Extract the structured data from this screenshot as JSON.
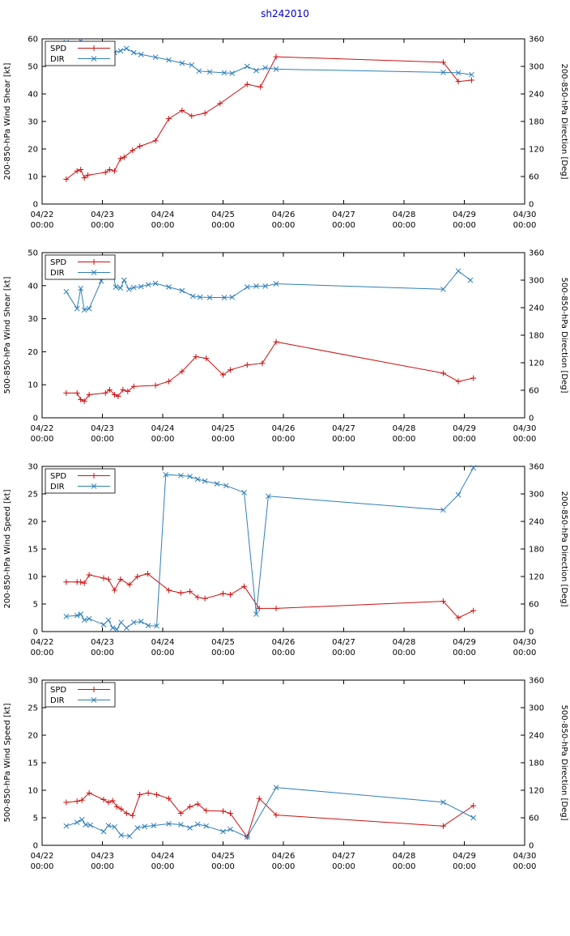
{
  "title": "sh242010",
  "colors": {
    "title": "#0000cc",
    "spd": "#cc1111",
    "dir": "#2e7eb8",
    "axis": "#000000"
  },
  "x_axis": {
    "lim": [
      0,
      8
    ],
    "ticks": [
      0,
      1,
      2,
      3,
      4,
      5,
      6,
      7,
      8
    ],
    "labels": [
      [
        "04/22",
        "00:00"
      ],
      [
        "04/23",
        "00:00"
      ],
      [
        "04/24",
        "00:00"
      ],
      [
        "04/25",
        "00:00"
      ],
      [
        "04/26",
        "00:00"
      ],
      [
        "04/27",
        "00:00"
      ],
      [
        "04/28",
        "00:00"
      ],
      [
        "04/29",
        "00:00"
      ],
      [
        "04/30",
        "00:00"
      ]
    ]
  },
  "chart_data": [
    {
      "type": "line",
      "ylabel_left": "200-850-hPa Wind Shear [kt]",
      "ylabel_right": "200-850-hPa Direction [Deg]",
      "ylim_left": [
        0,
        60
      ],
      "ytick_left": 10,
      "ylim_right": [
        0,
        360
      ],
      "ytick_right": 60,
      "series": [
        {
          "name": "SPD",
          "axis": "left",
          "marker": "plus",
          "color": "spd",
          "points": [
            [
              0.4,
              9
            ],
            [
              0.58,
              12
            ],
            [
              0.64,
              12.5
            ],
            [
              0.7,
              9.5
            ],
            [
              0.76,
              10.5
            ],
            [
              1.05,
              11.5
            ],
            [
              1.12,
              12.5
            ],
            [
              1.2,
              12
            ],
            [
              1.3,
              16.5
            ],
            [
              1.36,
              17
            ],
            [
              1.5,
              19.5
            ],
            [
              1.62,
              21
            ],
            [
              1.88,
              23
            ],
            [
              2.1,
              31
            ],
            [
              2.32,
              34
            ],
            [
              2.48,
              32
            ],
            [
              2.7,
              33
            ],
            [
              2.95,
              36.5
            ],
            [
              3.4,
              43.5
            ],
            [
              3.62,
              42.5
            ],
            [
              3.88,
              53.5
            ],
            [
              6.65,
              51.5
            ],
            [
              6.9,
              44.5
            ],
            [
              7.12,
              45
            ]
          ]
        },
        {
          "name": "DIR",
          "axis": "right",
          "marker": "cross",
          "color": "dir",
          "points": [
            [
              0.4,
              352
            ],
            [
              0.5,
              330
            ],
            [
              0.58,
              331
            ],
            [
              0.64,
              355
            ],
            [
              0.7,
              330
            ],
            [
              0.76,
              333
            ],
            [
              0.9,
              338
            ],
            [
              1.05,
              332
            ],
            [
              1.2,
              330
            ],
            [
              1.3,
              334
            ],
            [
              1.4,
              339
            ],
            [
              1.52,
              330
            ],
            [
              1.64,
              326
            ],
            [
              1.88,
              320
            ],
            [
              2.1,
              314
            ],
            [
              2.32,
              307
            ],
            [
              2.48,
              303
            ],
            [
              2.6,
              290
            ],
            [
              2.78,
              288
            ],
            [
              3.02,
              286
            ],
            [
              3.15,
              285
            ],
            [
              3.4,
              300
            ],
            [
              3.55,
              291
            ],
            [
              3.7,
              297
            ],
            [
              3.88,
              294
            ],
            [
              6.65,
              287
            ],
            [
              6.9,
              286
            ],
            [
              7.12,
              282
            ]
          ]
        }
      ]
    },
    {
      "type": "line",
      "ylabel_left": "500-850-hPa Wind Shear [kt]",
      "ylabel_right": "500-850-hPa Direction [Deg]",
      "ylim_left": [
        0,
        50
      ],
      "ytick_left": 10,
      "ylim_right": [
        0,
        360
      ],
      "ytick_right": 60,
      "series": [
        {
          "name": "SPD",
          "axis": "left",
          "marker": "plus",
          "color": "spd",
          "points": [
            [
              0.4,
              7.5
            ],
            [
              0.58,
              7.5
            ],
            [
              0.64,
              5.5
            ],
            [
              0.7,
              5
            ],
            [
              0.78,
              7
            ],
            [
              1.05,
              7.5
            ],
            [
              1.12,
              8.5
            ],
            [
              1.2,
              7
            ],
            [
              1.26,
              6.5
            ],
            [
              1.34,
              8.5
            ],
            [
              1.42,
              8
            ],
            [
              1.52,
              9.5
            ],
            [
              1.88,
              9.8
            ],
            [
              2.1,
              11
            ],
            [
              2.32,
              14
            ],
            [
              2.55,
              18.5
            ],
            [
              2.72,
              18
            ],
            [
              3.0,
              13
            ],
            [
              3.12,
              14.5
            ],
            [
              3.4,
              16
            ],
            [
              3.65,
              16.5
            ],
            [
              3.88,
              23
            ],
            [
              6.65,
              13.5
            ],
            [
              6.9,
              11
            ],
            [
              7.15,
              12
            ]
          ]
        },
        {
          "name": "DIR",
          "axis": "right",
          "marker": "cross",
          "color": "dir",
          "points": [
            [
              0.4,
              275
            ],
            [
              0.58,
              238
            ],
            [
              0.64,
              282
            ],
            [
              0.7,
              235
            ],
            [
              0.78,
              238
            ],
            [
              0.98,
              298
            ],
            [
              1.05,
              332
            ],
            [
              1.1,
              312
            ],
            [
              1.15,
              330
            ],
            [
              1.22,
              285
            ],
            [
              1.3,
              283
            ],
            [
              1.36,
              300
            ],
            [
              1.44,
              280
            ],
            [
              1.52,
              284
            ],
            [
              1.64,
              286
            ],
            [
              1.76,
              290
            ],
            [
              1.88,
              293
            ],
            [
              2.1,
              285
            ],
            [
              2.32,
              277
            ],
            [
              2.5,
              265
            ],
            [
              2.62,
              263
            ],
            [
              2.78,
              262
            ],
            [
              3.02,
              262
            ],
            [
              3.15,
              263
            ],
            [
              3.4,
              285
            ],
            [
              3.55,
              287
            ],
            [
              3.7,
              287
            ],
            [
              3.88,
              292
            ],
            [
              6.65,
              280
            ],
            [
              6.9,
              320
            ],
            [
              7.1,
              300
            ]
          ]
        }
      ]
    },
    {
      "type": "line",
      "ylabel_left": "200-850-hPa Wind Speed [kt]",
      "ylabel_right": "200-850-hPa Direction [Deg]",
      "ylim_left": [
        0,
        30
      ],
      "ytick_left": 5,
      "ylim_right": [
        0,
        360
      ],
      "ytick_right": 60,
      "series": [
        {
          "name": "SPD",
          "axis": "left",
          "marker": "plus",
          "color": "spd",
          "points": [
            [
              0.4,
              9
            ],
            [
              0.58,
              9
            ],
            [
              0.64,
              9
            ],
            [
              0.7,
              8.8
            ],
            [
              0.78,
              10.3
            ],
            [
              1.02,
              9.7
            ],
            [
              1.1,
              9.5
            ],
            [
              1.2,
              7.5
            ],
            [
              1.3,
              9.5
            ],
            [
              1.45,
              8.5
            ],
            [
              1.58,
              10
            ],
            [
              1.75,
              10.5
            ],
            [
              2.1,
              7.5
            ],
            [
              2.3,
              7
            ],
            [
              2.45,
              7.3
            ],
            [
              2.58,
              6.2
            ],
            [
              2.7,
              6
            ],
            [
              3.0,
              6.9
            ],
            [
              3.12,
              6.7
            ],
            [
              3.35,
              8.2
            ],
            [
              3.6,
              4.2
            ],
            [
              3.88,
              4.2
            ],
            [
              6.65,
              5.5
            ],
            [
              6.9,
              2.5
            ],
            [
              7.15,
              3.8
            ]
          ]
        },
        {
          "name": "DIR",
          "axis": "right",
          "marker": "cross",
          "color": "dir",
          "points": [
            [
              0.4,
              33
            ],
            [
              0.58,
              35
            ],
            [
              0.64,
              38
            ],
            [
              0.7,
              25
            ],
            [
              0.78,
              28
            ],
            [
              1.02,
              15
            ],
            [
              1.1,
              25
            ],
            [
              1.17,
              8
            ],
            [
              1.24,
              5
            ],
            [
              1.31,
              20
            ],
            [
              1.4,
              8
            ],
            [
              1.52,
              20
            ],
            [
              1.64,
              22
            ],
            [
              1.76,
              13
            ],
            [
              1.9,
              12
            ],
            [
              2.05,
              342
            ],
            [
              2.3,
              340
            ],
            [
              2.45,
              338
            ],
            [
              2.58,
              332
            ],
            [
              2.7,
              328
            ],
            [
              2.9,
              322
            ],
            [
              3.05,
              318
            ],
            [
              3.35,
              303
            ],
            [
              3.55,
              38
            ],
            [
              3.75,
              295
            ],
            [
              6.65,
              265
            ],
            [
              6.9,
              298
            ],
            [
              7.15,
              357
            ]
          ]
        }
      ]
    },
    {
      "type": "line",
      "ylabel_left": "500-850-hPa Wind Speed [kt]",
      "ylabel_right": "500-850-hPa Direction [Deg]",
      "ylim_left": [
        0,
        30
      ],
      "ytick_left": 5,
      "ylim_right": [
        0,
        360
      ],
      "ytick_right": 60,
      "series": [
        {
          "name": "SPD",
          "axis": "left",
          "marker": "plus",
          "color": "spd",
          "points": [
            [
              0.4,
              7.8
            ],
            [
              0.58,
              8
            ],
            [
              0.66,
              8.2
            ],
            [
              0.78,
              9.5
            ],
            [
              1.02,
              8.3
            ],
            [
              1.1,
              7.8
            ],
            [
              1.17,
              8.1
            ],
            [
              1.24,
              7
            ],
            [
              1.31,
              6.6
            ],
            [
              1.4,
              5.8
            ],
            [
              1.5,
              5.4
            ],
            [
              1.62,
              9.2
            ],
            [
              1.76,
              9.5
            ],
            [
              1.9,
              9.2
            ],
            [
              2.1,
              8.5
            ],
            [
              2.3,
              5.8
            ],
            [
              2.45,
              7
            ],
            [
              2.58,
              7.5
            ],
            [
              2.72,
              6.3
            ],
            [
              3.0,
              6.2
            ],
            [
              3.12,
              5.8
            ],
            [
              3.4,
              1.5
            ],
            [
              3.6,
              8.5
            ],
            [
              3.88,
              5.5
            ],
            [
              6.65,
              3.5
            ],
            [
              7.15,
              7.2
            ]
          ]
        },
        {
          "name": "DIR",
          "axis": "right",
          "marker": "cross",
          "color": "dir",
          "points": [
            [
              0.4,
              42
            ],
            [
              0.58,
              50
            ],
            [
              0.66,
              56
            ],
            [
              0.72,
              45
            ],
            [
              0.8,
              44
            ],
            [
              1.02,
              30
            ],
            [
              1.1,
              43
            ],
            [
              1.2,
              40
            ],
            [
              1.31,
              22
            ],
            [
              1.45,
              20
            ],
            [
              1.58,
              38
            ],
            [
              1.7,
              41
            ],
            [
              1.85,
              43
            ],
            [
              2.1,
              47
            ],
            [
              2.3,
              45
            ],
            [
              2.45,
              38
            ],
            [
              2.58,
              46
            ],
            [
              2.72,
              42
            ],
            [
              3.0,
              30
            ],
            [
              3.12,
              35
            ],
            [
              3.4,
              18
            ],
            [
              3.88,
              126
            ],
            [
              6.65,
              94
            ],
            [
              7.15,
              60
            ]
          ]
        }
      ]
    }
  ]
}
